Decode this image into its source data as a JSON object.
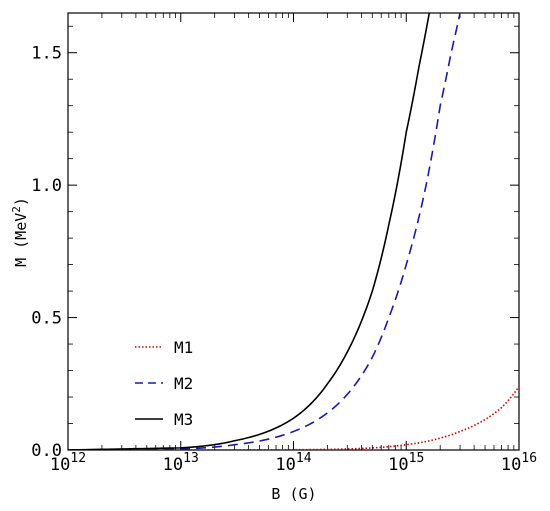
{
  "chart_data": {
    "type": "line",
    "xlabel": "B (G)",
    "ylabel": "M (MeV",
    "ylabel_sup": "2",
    "ylabel_close": ")",
    "x_scale": "log",
    "xlim": [
      1000000000000.0,
      1e+16
    ],
    "ylim": [
      0,
      1.65
    ],
    "x_ticks": [
      {
        "base": "10",
        "exp": "12"
      },
      {
        "base": "10",
        "exp": "13"
      },
      {
        "base": "10",
        "exp": "14"
      },
      {
        "base": "10",
        "exp": "15"
      },
      {
        "base": "10",
        "exp": "16"
      }
    ],
    "y_ticks": [
      "0.0",
      "0.5",
      "1.0",
      "1.5"
    ],
    "grid": false,
    "legend_position": "bottom-left",
    "series": [
      {
        "name": "M1",
        "color": "#cc0000",
        "style": "dotted",
        "x": [
          1000000000000.0,
          10000000000000.0,
          100000000000000.0,
          300000000000000.0,
          1000000000000000.0,
          2000000000000000.0,
          3000000000000000.0,
          5000000000000000.0,
          7000000000000000.0,
          1e+16
        ],
        "y": [
          0.0,
          0.0,
          0.001,
          0.004,
          0.02,
          0.045,
          0.07,
          0.115,
          0.16,
          0.24
        ]
      },
      {
        "name": "M2",
        "color": "#1a1aaa",
        "style": "dashed",
        "x": [
          1000000000000.0,
          10000000000000.0,
          30000000000000.0,
          100000000000000.0,
          200000000000000.0,
          300000000000000.0,
          500000000000000.0,
          700000000000000.0,
          1000000000000000.0,
          1500000000000000.0,
          2000000000000000.0,
          2500000000000000.0,
          3000000000000000.0
        ],
        "y": [
          0.0,
          0.004,
          0.02,
          0.07,
          0.14,
          0.21,
          0.35,
          0.5,
          0.7,
          1.0,
          1.3,
          1.5,
          1.65
        ]
      },
      {
        "name": "M3",
        "color": "#000000",
        "style": "solid",
        "x": [
          1000000000000.0,
          10000000000000.0,
          30000000000000.0,
          100000000000000.0,
          200000000000000.0,
          300000000000000.0,
          500000000000000.0,
          700000000000000.0,
          1000000000000000.0,
          1300000000000000.0,
          1600000000000000.0
        ],
        "y": [
          0.0,
          0.008,
          0.035,
          0.12,
          0.25,
          0.37,
          0.6,
          0.85,
          1.2,
          1.45,
          1.65
        ]
      }
    ]
  }
}
